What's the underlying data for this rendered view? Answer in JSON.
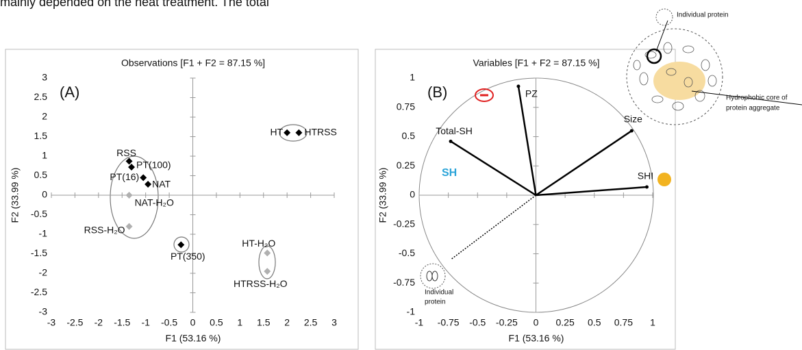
{
  "text_fragment": "mainly depended on the heat treatment. The total",
  "chart_data": [
    {
      "type": "scatter",
      "title": "Observations [F1 + F2 = 87.15 %]",
      "panel_label": "(A)",
      "x_label": "F1 (53.16 %)",
      "y_label": "F2 (33.99 %)",
      "xlim": [
        -3,
        3
      ],
      "xticks": [
        -3,
        -2.5,
        -2,
        -1.5,
        -1,
        -0.5,
        0,
        0.5,
        1,
        1.5,
        2,
        2.5,
        3
      ],
      "ylim": [
        -3,
        3
      ],
      "yticks": [
        -3,
        -2.5,
        -2,
        -1.5,
        -1,
        -0.5,
        0,
        0.5,
        1,
        1.5,
        2,
        2.5,
        3
      ],
      "series": [
        {
          "color": "#000000",
          "labels": [
            "RSS",
            "PT(100)",
            "PT(16)",
            "NAT",
            "HT",
            "HTRSS",
            "PT(350)"
          ],
          "x": [
            -1.35,
            -1.3,
            -1.05,
            -0.95,
            2.0,
            2.25,
            -0.25
          ],
          "values": [
            0.87,
            0.72,
            0.45,
            0.28,
            1.6,
            1.6,
            -1.27
          ]
        },
        {
          "color": "#b0b0b0",
          "labels": [
            "NAT-H₂O",
            "RSS-H₂O",
            "HT-H₂O",
            "HTRSS-H₂O"
          ],
          "x": [
            -1.35,
            -1.35,
            1.58,
            1.58
          ],
          "values": [
            0.0,
            -0.8,
            -1.48,
            -1.95
          ]
        }
      ]
    },
    {
      "type": "vector",
      "title": "Variables [F1 + F2 = 87.15 %]",
      "panel_label": "(B)",
      "x_label": "F1 (53.16 %)",
      "y_label": "F2 (33.99 %)",
      "xlim": [
        -1,
        1
      ],
      "xticks": [
        -1,
        -0.75,
        -0.5,
        -0.25,
        0,
        0.25,
        0.5,
        0.75,
        1
      ],
      "ylim": [
        -1,
        1
      ],
      "yticks": [
        -1,
        -0.75,
        -0.5,
        -0.25,
        0,
        0.25,
        0.5,
        0.75,
        1
      ],
      "series": [
        {
          "color": "#000000",
          "labels": [
            "PZ",
            "Total-SH",
            "Size",
            "SHI"
          ],
          "x": [
            -0.15,
            -0.73,
            0.82,
            0.95
          ],
          "values": [
            0.93,
            0.46,
            0.55,
            0.07
          ]
        },
        {
          "color": "#000000",
          "dotted": true,
          "x": [
            -0.73
          ],
          "values": [
            -0.55
          ]
        }
      ],
      "annotations": {
        "sh": "SH",
        "individual_protein_bottom": [
          "Individual",
          "protein"
        ],
        "individual_protein_top": "Individual protein",
        "hydrophobic_core": [
          "Hydrophobic core of",
          "protein aggregate"
        ]
      }
    }
  ]
}
